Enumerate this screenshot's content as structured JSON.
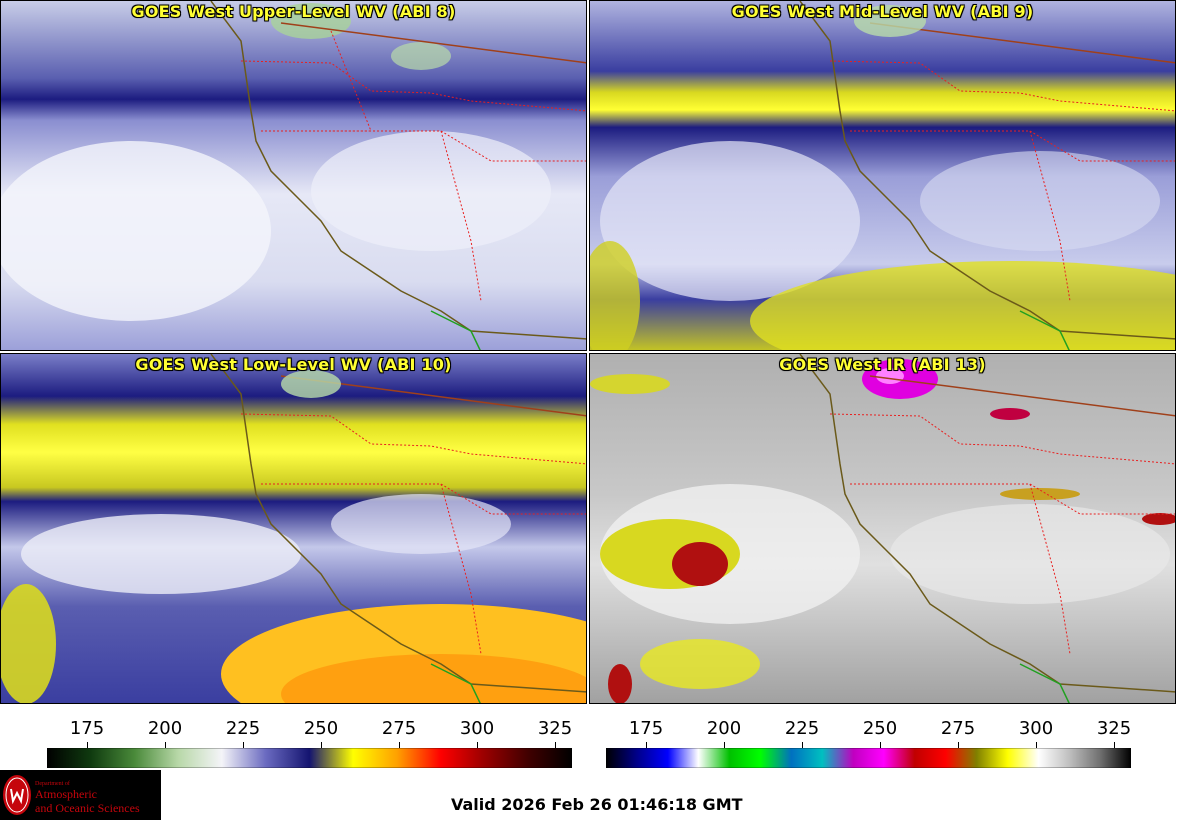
{
  "panels": [
    {
      "title": "GOES West Upper-Level WV (ABI 8)",
      "style": "upper"
    },
    {
      "title": "GOES West Mid-Level WV (ABI 9)",
      "style": "mid"
    },
    {
      "title": "GOES West Low-Level WV (ABI 10)",
      "style": "low"
    },
    {
      "title": "GOES West IR (ABI 13)",
      "style": "ir"
    }
  ],
  "colorbars": {
    "wv": {
      "ticks": [
        "175",
        "200",
        "225",
        "250",
        "275",
        "300",
        "325"
      ],
      "colors": [
        "#000000",
        "#0f3a0f",
        "#4a8a3a",
        "#b8d8a8",
        "#f4f4f8",
        "#6a6ac0",
        "#141470",
        "#ffff00",
        "#ffa000",
        "#ff0000",
        "#9a0000",
        "#400000",
        "#000000"
      ]
    },
    "ir": {
      "ticks": [
        "175",
        "200",
        "225",
        "250",
        "275",
        "300",
        "325"
      ],
      "colors": [
        "#000000",
        "#00008a",
        "#0000ff",
        "#ffffff",
        "#00c000",
        "#00ff00",
        "#0070c0",
        "#00c0c0",
        "#c000c0",
        "#ff00ff",
        "#c00000",
        "#ff0000",
        "#808000",
        "#ffff00",
        "#ffffff",
        "#c0c0c0",
        "#707070",
        "#000000"
      ]
    }
  },
  "logo": {
    "dept": "Department of",
    "line1": "Atmospheric",
    "line2": "and Oceanic Sciences"
  },
  "valid_time": "Valid 2026 Feb 26 01:46:18 GMT"
}
